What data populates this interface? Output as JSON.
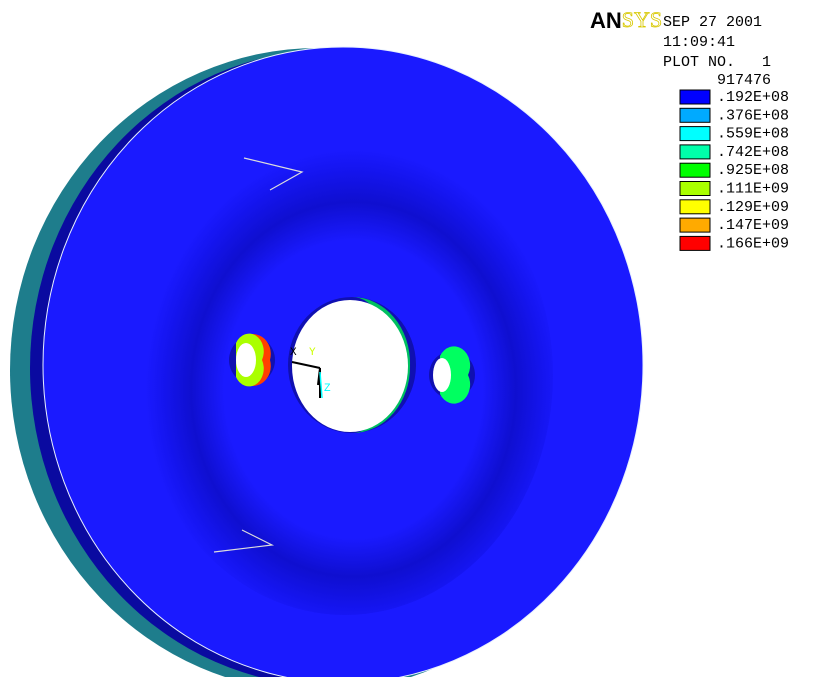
{
  "header": {
    "logo_bold": "AN",
    "logo_light": "SYS",
    "date": "SEP 27 2001",
    "time": "11:09:41",
    "plot_no": "PLOT NO.   1"
  },
  "legend": {
    "min": "917476",
    "entries": [
      {
        "label": ".192E+08",
        "color": "#0000ff"
      },
      {
        "label": ".376E+08",
        "color": "#00aaff"
      },
      {
        "label": ".559E+08",
        "color": "#00ffff"
      },
      {
        "label": ".742E+08",
        "color": "#00ffaa"
      },
      {
        "label": ".925E+08",
        "color": "#00ff00"
      },
      {
        "label": ".111E+09",
        "color": "#aaff00"
      },
      {
        "label": ".129E+09",
        "color": "#ffff00"
      },
      {
        "label": ".147E+09",
        "color": "#ffaa00"
      },
      {
        "label": ".166E+09",
        "color": "#ff0000"
      }
    ]
  },
  "triad": {
    "x": "X",
    "y": "Y",
    "z": "Z"
  }
}
